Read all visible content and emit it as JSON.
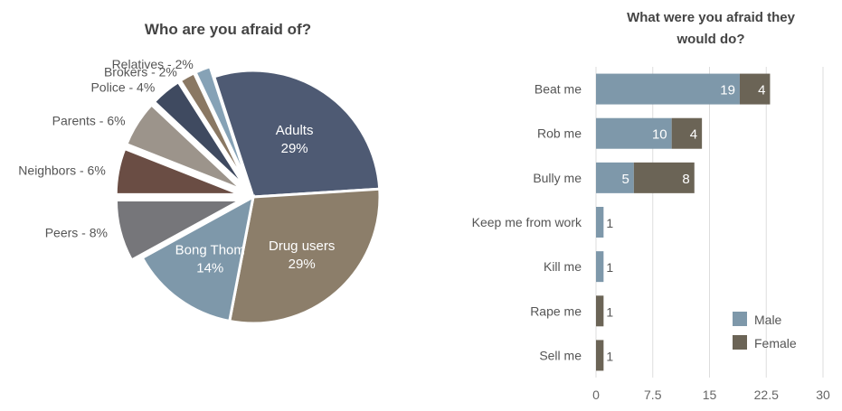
{
  "chart_data": [
    {
      "type": "pie",
      "title": "Who are you afraid of?",
      "slices": [
        {
          "name": "Adults",
          "value": 29,
          "label": "29%",
          "color": "#4e5a73",
          "exploded": false
        },
        {
          "name": "Drug users",
          "value": 29,
          "label": "29%",
          "color": "#8c7e6a",
          "exploded": false
        },
        {
          "name": "Bong Thom",
          "value": 14,
          "label": "14%",
          "color": "#7e98aa",
          "exploded": false
        },
        {
          "name": "Peers",
          "value": 8,
          "label": "Peers - 8%",
          "color": "#76767a",
          "exploded": true
        },
        {
          "name": "Neighbors",
          "value": 6,
          "label": "Neighbors - 6%",
          "color": "#6a4d44",
          "exploded": true
        },
        {
          "name": "Parents",
          "value": 6,
          "label": "Parents - 6%",
          "color": "#9c948b",
          "exploded": true
        },
        {
          "name": "Police",
          "value": 4,
          "label": "Police - 4%",
          "color": "#3f4a60",
          "exploded": true
        },
        {
          "name": "Brokers",
          "value": 2,
          "label": "Brokers - 2%",
          "color": "#8a7863",
          "exploded": true
        },
        {
          "name": "Relatives",
          "value": 2,
          "label": "Relatives - 2%",
          "color": "#86a2b6",
          "exploded": true
        }
      ]
    },
    {
      "type": "bar",
      "orientation": "horizontal",
      "stacked": true,
      "title_lines": [
        "What were you afraid they",
        "would do?"
      ],
      "categories": [
        "Beat me",
        "Rob me",
        "Bully me",
        "Keep me from work",
        "Kill me",
        "Rape me",
        "Sell me"
      ],
      "series": [
        {
          "name": "Male",
          "color": "#7e98aa",
          "values": [
            19,
            10,
            5,
            1,
            1,
            0,
            0
          ]
        },
        {
          "name": "Female",
          "color": "#6b6456",
          "values": [
            4,
            4,
            8,
            0,
            0,
            1,
            1
          ]
        }
      ],
      "xlim": [
        0,
        30
      ],
      "xticks": [
        "0",
        "7.5",
        "15",
        "22.5",
        "30"
      ],
      "xtick_values": [
        0,
        7.5,
        15,
        22.5,
        30
      ],
      "grid": true,
      "legend_position": "bottom-right"
    }
  ]
}
